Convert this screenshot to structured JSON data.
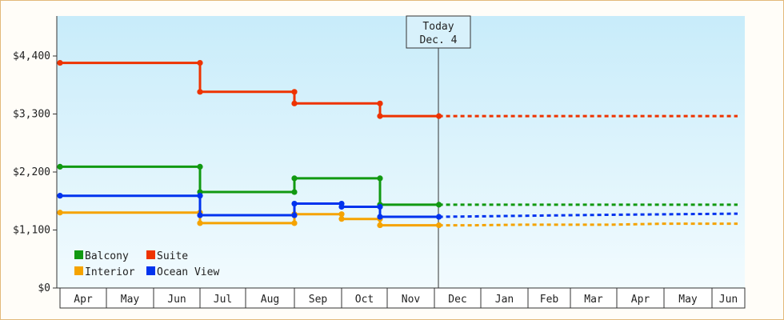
{
  "chart_data": {
    "type": "line",
    "style": "step",
    "title": "",
    "xlabel": "",
    "ylabel": "",
    "y_ticks": [
      "$0",
      "$1,100",
      "$2,200",
      "$3,300",
      "$4,400"
    ],
    "y_tick_values": [
      0,
      1100,
      2200,
      3300,
      4400
    ],
    "ylim": [
      0,
      4400
    ],
    "x_tick_labels": [
      "Apr",
      "May",
      "Jun",
      "Jul",
      "Aug",
      "Sep",
      "Oct",
      "Nov",
      "Dec",
      "Jan",
      "Feb",
      "Mar",
      "Apr",
      "May",
      "Jun"
    ],
    "grid": false,
    "legend_placement": "bottom-left",
    "today_marker": {
      "line1": "Today",
      "line2": "Dec. 4"
    },
    "series": [
      {
        "name": "Balcony",
        "color": "#119911",
        "history": [
          [
            "Apr 1",
            2300
          ],
          [
            "Jul 1",
            2300
          ],
          [
            "Jul 1",
            1820
          ],
          [
            "Sep 1",
            1820
          ],
          [
            "Sep 1",
            2080
          ],
          [
            "Oct 31",
            2080
          ],
          [
            "Oct 31",
            1580
          ],
          [
            "Dec 4",
            1580
          ]
        ],
        "forecast": [
          [
            "Dec 4",
            1580
          ],
          [
            "Jun 30",
            1580
          ]
        ]
      },
      {
        "name": "Suite",
        "color": "#ee3300",
        "history": [
          [
            "Apr 1",
            4270
          ],
          [
            "Jul 1",
            4270
          ],
          [
            "Jul 1",
            3720
          ],
          [
            "Sep 1",
            3720
          ],
          [
            "Sep 1",
            3500
          ],
          [
            "Oct 31",
            3500
          ],
          [
            "Oct 31",
            3260
          ],
          [
            "Dec 4",
            3260
          ]
        ],
        "forecast": [
          [
            "Dec 4",
            3260
          ],
          [
            "Jun 30",
            3260
          ]
        ]
      },
      {
        "name": "Interior",
        "color": "#f5a300",
        "history": [
          [
            "Apr 1",
            1430
          ],
          [
            "Jul 1",
            1430
          ],
          [
            "Jul 1",
            1230
          ],
          [
            "Sep 1",
            1230
          ],
          [
            "Sep 1",
            1400
          ],
          [
            "Oct 1",
            1400
          ],
          [
            "Oct 1",
            1310
          ],
          [
            "Oct 31",
            1310
          ],
          [
            "Oct 31",
            1190
          ],
          [
            "Dec 4",
            1190
          ]
        ],
        "forecast": [
          [
            "Dec 4",
            1190
          ],
          [
            "Dec 31",
            1190
          ],
          [
            "Jan 31",
            1200
          ],
          [
            "Mar 31",
            1200
          ],
          [
            "May 1",
            1220
          ],
          [
            "Jun 30",
            1220
          ]
        ]
      },
      {
        "name": "Ocean View",
        "color": "#0033ee",
        "history": [
          [
            "Apr 1",
            1750
          ],
          [
            "Jul 1",
            1750
          ],
          [
            "Jul 1",
            1380
          ],
          [
            "Sep 1",
            1380
          ],
          [
            "Sep 1",
            1600
          ],
          [
            "Oct 1",
            1600
          ],
          [
            "Oct 1",
            1540
          ],
          [
            "Oct 31",
            1540
          ],
          [
            "Oct 31",
            1350
          ],
          [
            "Dec 4",
            1350
          ]
        ],
        "forecast": [
          [
            "Dec 4",
            1350
          ],
          [
            "Jan 1",
            1360
          ],
          [
            "Mar 1",
            1380
          ],
          [
            "Apr 1",
            1390
          ],
          [
            "Jun 30",
            1410
          ]
        ]
      }
    ]
  }
}
